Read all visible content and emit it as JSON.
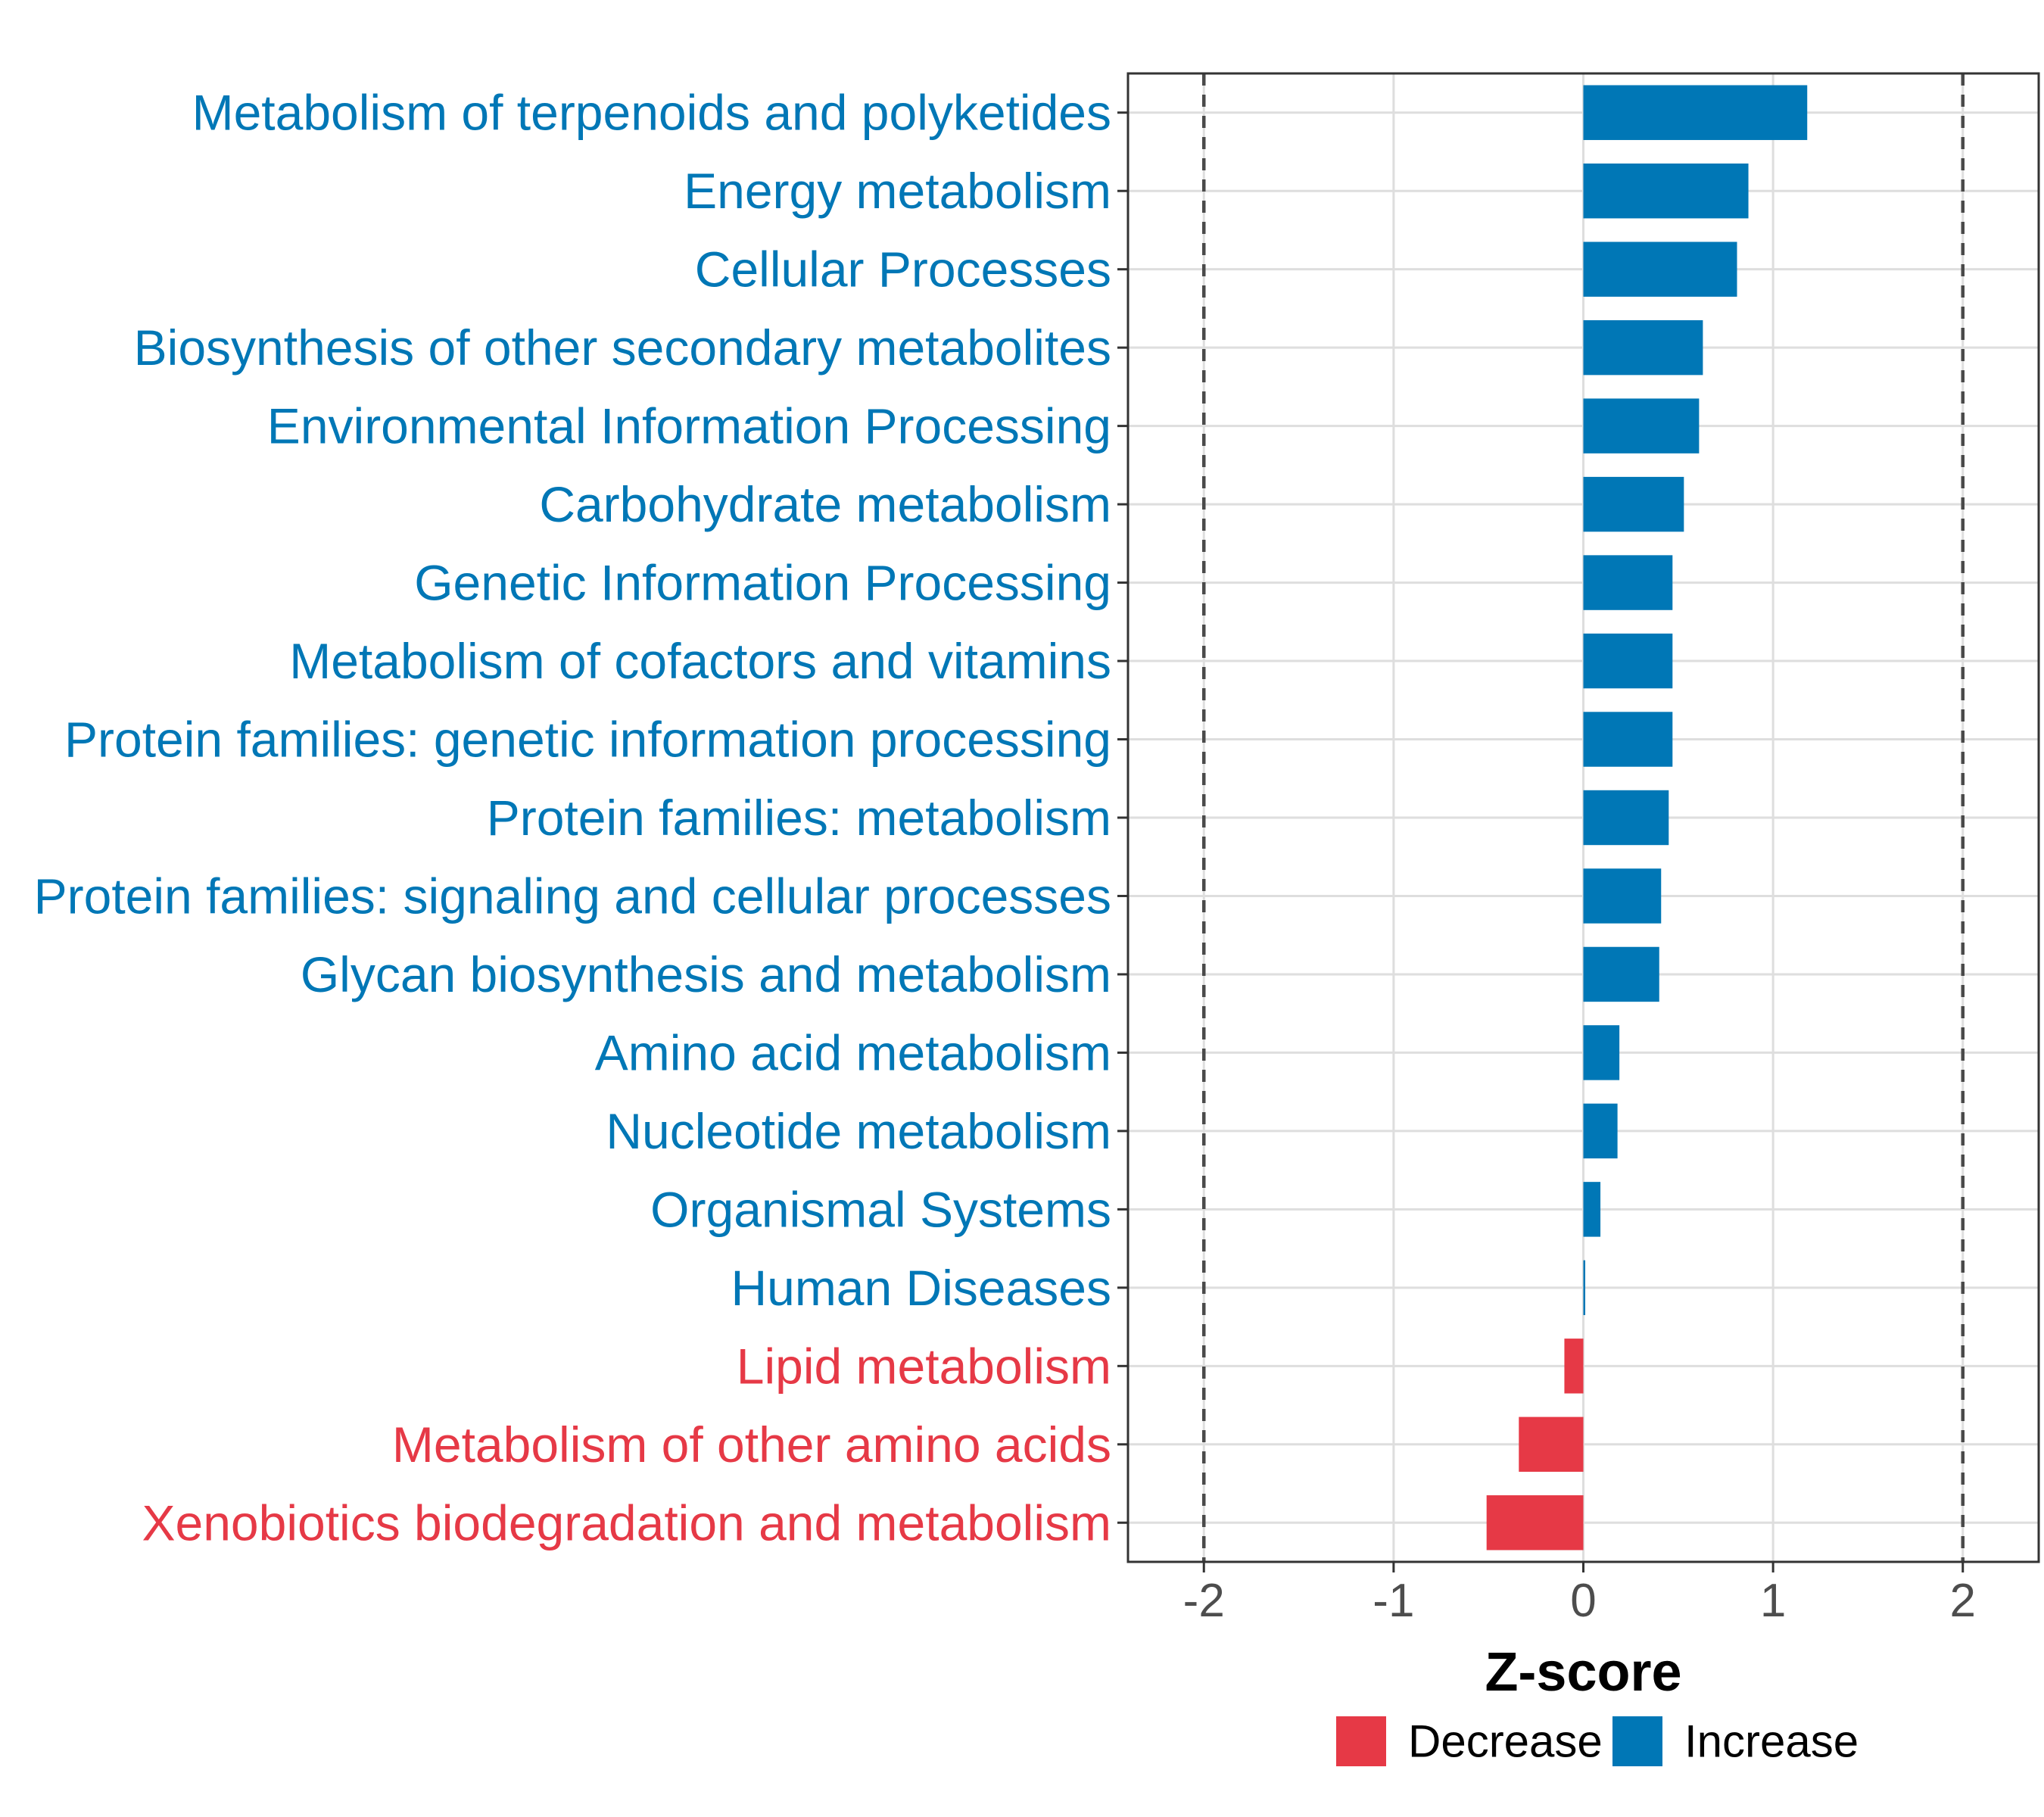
{
  "chart_data": {
    "type": "bar",
    "orientation": "horizontal",
    "xlabel": "Z-score",
    "xlim": [
      -2.4,
      2.4
    ],
    "xticks": [
      -2,
      -1,
      0,
      1,
      2
    ],
    "xtick_labels": [
      "-2",
      "-1",
      "0",
      "1",
      "2"
    ],
    "reference_lines": [
      -2,
      2
    ],
    "grid": true,
    "legend_position": "bottom",
    "legend": [
      {
        "key": "decrease",
        "label": "Decrease",
        "color": "#e63946"
      },
      {
        "key": "increase",
        "label": "Increase",
        "color": "#0077b6"
      }
    ],
    "categories": [
      "Metabolism of terpenoids and polyketides",
      "Energy metabolism",
      "Cellular Processes",
      "Biosynthesis of other secondary metabolites",
      "Environmental Information Processing",
      "Carbohydrate metabolism",
      "Genetic Information Processing",
      "Metabolism of cofactors and vitamins",
      "Protein families: genetic information processing",
      "Protein families: metabolism",
      "Protein families: signaling and cellular processes",
      "Glycan biosynthesis and metabolism",
      "Amino acid metabolism",
      "Nucleotide metabolism",
      "Organismal Systems",
      "Human Diseases",
      "Lipid metabolism",
      "Metabolism of other amino acids",
      "Xenobiotics biodegradation and metabolism"
    ],
    "values": [
      1.18,
      0.87,
      0.81,
      0.63,
      0.61,
      0.53,
      0.47,
      0.47,
      0.47,
      0.45,
      0.41,
      0.4,
      0.19,
      0.18,
      0.09,
      0.01,
      -0.1,
      -0.34,
      -0.51
    ],
    "groups": [
      "increase",
      "increase",
      "increase",
      "increase",
      "increase",
      "increase",
      "increase",
      "increase",
      "increase",
      "increase",
      "increase",
      "increase",
      "increase",
      "increase",
      "increase",
      "increase",
      "decrease",
      "decrease",
      "decrease"
    ]
  }
}
